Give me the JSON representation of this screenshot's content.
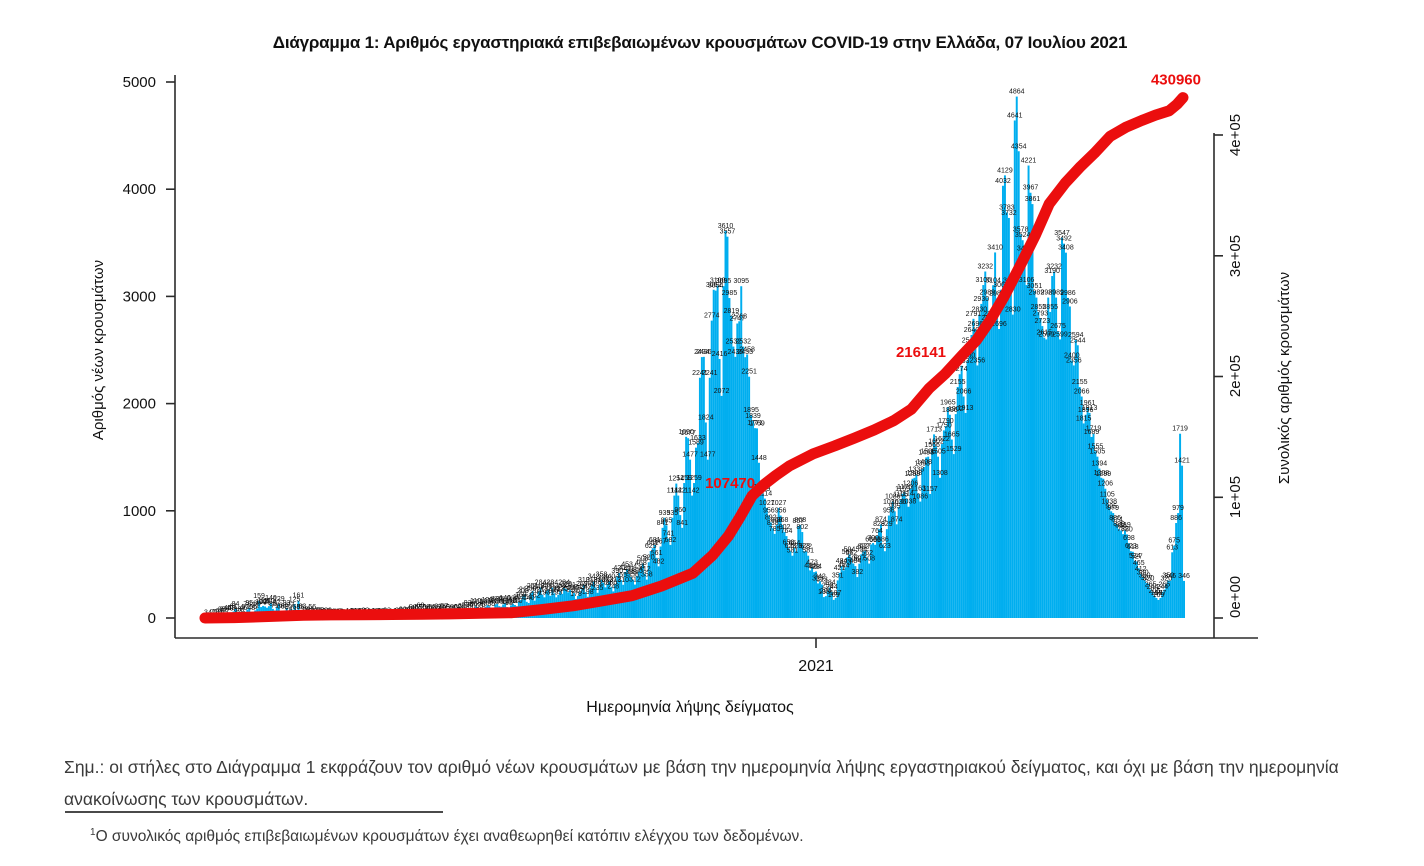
{
  "page": {
    "title": "Διάγραμμα 1: Αριθμός εργαστηριακά επιβεβαιωμένων κρουσμάτων COVID-19 στην Ελλάδα, 07 Ιουλίου 2021",
    "note": "Σημ.: οι στήλες στο Διάγραμμα 1 εκφράζουν τον αριθμό νέων κρουσμάτων με βάση την ημερομηνία λήψης εργαστηριακού δείγματος, και όχι με βάση την ημερομηνία ανακοίνωσης των κρουσμάτων.",
    "footnote_mark": "1",
    "footnote": "Ο συνολικός αριθμός επιβεβαιωμένων κρουσμάτων έχει αναθεωρηθεί κατόπιν ελέγχου των δεδομένων."
  },
  "chart_data": {
    "type": "bar",
    "title": "Διάγραμμα 1: Αριθμός εργαστηριακά επιβεβαιωμένων κρουσμάτων COVID-19 στην Ελλάδα, 07 Ιουλίου 2021",
    "left_axis": {
      "label": "Αριθμός νέων κρουσμάτων",
      "ticks": [
        0,
        1000,
        2000,
        3000,
        4000,
        5000
      ],
      "ylim": [
        0,
        5000
      ]
    },
    "right_axis": {
      "label": "Συνολικός αριθμός κρουσμάτων",
      "ticks": [
        "0e+00",
        "1e+05",
        "2e+05",
        "3e+05",
        "4e+05"
      ],
      "ylim": [
        0,
        400000
      ]
    },
    "x_axis": {
      "label": "Ημερομηνία λήψης δείγματος",
      "ticks": [
        {
          "label": "2021",
          "day": 310
        }
      ]
    },
    "bar_color": "#00AEEF",
    "line_color": "#EB0E0E",
    "label_color": "#141414",
    "daily_values": [
      3,
      1,
      4,
      7,
      7,
      10,
      10,
      21,
      35,
      31,
      17,
      45,
      40,
      48,
      61,
      84,
      35,
      21,
      31,
      46,
      57,
      78,
      95,
      48,
      56,
      71,
      89,
      159,
      102,
      113,
      107,
      96,
      110,
      140,
      85,
      71,
      97,
      129,
      60,
      68,
      62,
      93,
      52,
      77,
      33,
      125,
      58,
      161,
      55,
      63,
      32,
      28,
      19,
      31,
      56,
      21,
      13,
      22,
      28,
      16,
      11,
      17,
      23,
      10,
      12,
      6,
      10,
      15,
      12,
      8,
      3,
      11,
      6,
      17,
      10,
      15,
      12,
      19,
      9,
      14,
      21,
      23,
      12,
      8,
      15,
      10,
      19,
      13,
      9,
      20,
      12,
      10,
      23,
      9,
      11,
      14,
      8,
      17,
      25,
      11,
      32,
      19,
      23,
      29,
      43,
      52,
      46,
      31,
      57,
      68,
      50,
      43,
      58,
      39,
      47,
      55,
      31,
      42,
      61,
      53,
      48,
      67,
      58,
      44,
      52,
      46,
      50,
      43,
      57,
      28,
      65,
      48,
      73,
      93,
      75,
      60,
      85,
      110,
      102,
      65,
      75,
      90,
      105,
      120,
      110,
      85,
      97,
      127,
      132,
      110,
      105,
      126,
      140,
      102,
      95,
      118,
      133,
      121,
      110,
      151,
      168,
      203,
      217,
      151,
      140,
      230,
      251,
      162,
      207,
      246,
      284,
      217,
      193,
      251,
      268,
      207,
      284,
      230,
      193,
      217,
      251,
      225,
      284,
      270,
      240,
      261,
      218,
      235,
      178,
      207,
      241,
      269,
      310,
      242,
      198,
      268,
      310,
      342,
      286,
      235,
      310,
      358,
      330,
      286,
      312,
      340,
      286,
      248,
      312,
      390,
      420,
      355,
      310,
      426,
      453,
      411,
      383,
      358,
      312,
      390,
      434,
      468,
      508,
      412,
      358,
      520,
      625,
      651,
      681,
      561,
      482,
      667,
      841,
      935,
      865,
      741,
      682,
      935,
      1142,
      1254,
      1142,
      960,
      841,
      1259,
      1690,
      1677,
      1477,
      1142,
      1259,
      1589,
      1633,
      2241,
      2434,
      2436,
      1824,
      1477,
      2241,
      2774,
      3062,
      3054,
      3100,
      2416,
      2072,
      3095,
      3610,
      3557,
      2985,
      2819,
      2532,
      2436,
      2747,
      2768,
      3095,
      2532,
      2433,
      2458,
      2251,
      1895,
      1839,
      1771,
      1769,
      1448,
      1176,
      1159,
      1114,
      1027,
      956,
      892,
      838,
      785,
      868,
      1027,
      956,
      868,
      802,
      764,
      656,
      623,
      581,
      654,
      623,
      857,
      868,
      802,
      623,
      622,
      581,
      444,
      473,
      428,
      434,
      323,
      342,
      313,
      195,
      204,
      258,
      284,
      244,
      169,
      187,
      351,
      421,
      484,
      444,
      473,
      567,
      594,
      562,
      508,
      484,
      382,
      507,
      594,
      622,
      627,
      562,
      508,
      686,
      700,
      683,
      764,
      829,
      874,
      686,
      623,
      829,
      956,
      1036,
      1086,
      995,
      874,
      1036,
      1105,
      1159,
      1176,
      1114,
      1038,
      1206,
      1299,
      1308,
      1338,
      1163,
      1086,
      1393,
      1408,
      1498,
      1505,
      1157,
      1566,
      1713,
      1602,
      1505,
      1308,
      1622,
      1750,
      1790,
      1965,
      1896,
      1665,
      1529,
      1902,
      2155,
      2274,
      2353,
      2066,
      1913,
      2400,
      2540,
      2640,
      2791,
      2696,
      2356,
      2830,
      2930,
      3106,
      3232,
      2989,
      2754,
      2791,
      3104,
      3410,
      2982,
      2696,
      3062,
      4032,
      4129,
      3783,
      3732,
      3104,
      2830,
      4641,
      4864,
      4354,
      3578,
      3524,
      3401,
      3106,
      4221,
      3967,
      3861,
      3051,
      2989,
      2855,
      2793,
      2723,
      2615,
      2599,
      2989,
      2855,
      3190,
      3232,
      2989,
      2675,
      2599,
      3547,
      3492,
      3408,
      2986,
      2906,
      2400,
      2356,
      2594,
      2544,
      2155,
      2066,
      1815,
      1896,
      1961,
      1913,
      1689,
      1719,
      1555,
      1505,
      1394,
      1308,
      1299,
      1206,
      1105,
      1038,
      995,
      979,
      886,
      874,
      829,
      816,
      782,
      819,
      780,
      698,
      623,
      618,
      534,
      527,
      465,
      412,
      380,
      350,
      327,
      320,
      265,
      244,
      205,
      187,
      169,
      187,
      244,
      265,
      320,
      350,
      346,
      613,
      675,
      886,
      979,
      1719,
      1421,
      346
    ],
    "cumulative_anchors": [
      [
        0,
        0
      ],
      [
        15,
        300
      ],
      [
        34,
        1314
      ],
      [
        50,
        2200
      ],
      [
        64,
        2591
      ],
      [
        80,
        2750
      ],
      [
        95,
        2917
      ],
      [
        110,
        3150
      ],
      [
        125,
        3409
      ],
      [
        140,
        3900
      ],
      [
        156,
        4401
      ],
      [
        170,
        6800
      ],
      [
        187,
        10134
      ],
      [
        200,
        13700
      ],
      [
        217,
        18475
      ],
      [
        232,
        26500
      ],
      [
        248,
        37196
      ],
      [
        258,
        52000
      ],
      [
        266,
        68000
      ],
      [
        272,
        84000
      ],
      [
        278,
        101287
      ],
      [
        284,
        110500
      ],
      [
        290,
        118000
      ],
      [
        297,
        126000
      ],
      [
        309,
        135931
      ],
      [
        320,
        142500
      ],
      [
        330,
        149000
      ],
      [
        340,
        155678
      ],
      [
        350,
        163500
      ],
      [
        359,
        173000
      ],
      [
        368,
        190235
      ],
      [
        376,
        202000
      ],
      [
        385,
        218000
      ],
      [
        392,
        230000
      ],
      [
        399,
        246618
      ],
      [
        406,
        266000
      ],
      [
        414,
        291000
      ],
      [
        422,
        317000
      ],
      [
        429,
        342908
      ],
      [
        437,
        360000
      ],
      [
        445,
        374000
      ],
      [
        452,
        385000
      ],
      [
        460,
        398926
      ],
      [
        468,
        406500
      ],
      [
        476,
        412000
      ],
      [
        483,
        416500
      ],
      [
        490,
        420107
      ],
      [
        494,
        425500
      ],
      [
        497,
        430960
      ]
    ],
    "annotations": [
      {
        "text": "107470",
        "value": 107470,
        "day": 277,
        "placement": "mid"
      },
      {
        "text": "216141",
        "value": 216141,
        "day": 374,
        "placement": "mid"
      },
      {
        "text": "430960",
        "value": 430960,
        "day": 497,
        "placement": "end"
      }
    ]
  }
}
